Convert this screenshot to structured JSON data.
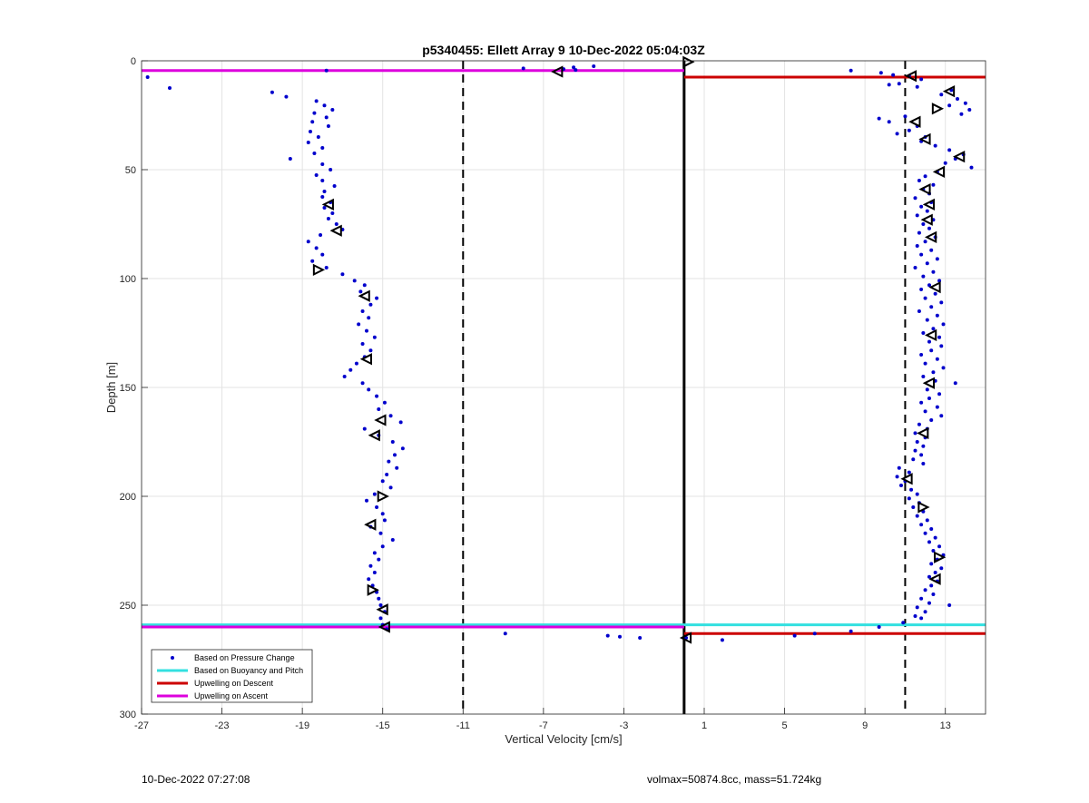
{
  "chart_data": {
    "type": "scatter",
    "title": "p5340455: Ellett Array 9 10-Dec-2022 05:04:03Z",
    "xlabel": "Vertical Velocity [cm/s]",
    "ylabel": "Depth [m]",
    "xlim": [
      -27,
      15
    ],
    "ylim": [
      0,
      300
    ],
    "y_reversed": true,
    "xticks": [
      -27,
      -23,
      -19,
      -15,
      -11,
      -7,
      -3,
      1,
      5,
      9,
      13
    ],
    "yticks": [
      0,
      50,
      100,
      150,
      200,
      250,
      300
    ],
    "grid": true,
    "legend_position": "bottom-left",
    "legend": [
      {
        "label": "Based on Pressure Change",
        "color": "#0000cc",
        "style": "dot"
      },
      {
        "label": "Based on Buoyancy and Pitch",
        "color": "#33e0e0",
        "style": "line"
      },
      {
        "label": "Upwelling on Descent",
        "color": "#cc0000",
        "style": "line"
      },
      {
        "label": "Upwelling on Ascent",
        "color": "#dd00dd",
        "style": "line"
      }
    ],
    "vertical_lines": [
      {
        "x": 0,
        "style": "solid",
        "color": "#000000"
      },
      {
        "x": -11,
        "style": "dashed",
        "color": "#000000"
      },
      {
        "x": 11,
        "style": "dashed",
        "color": "#000000"
      }
    ],
    "horizontal_lines": [
      {
        "series": "Upwelling on Ascent",
        "y": 4.5,
        "x_from": -27,
        "x_to": 0,
        "color": "#dd00dd"
      },
      {
        "series": "Upwelling on Descent",
        "y": 7.5,
        "x_from": 0,
        "x_to": 15,
        "color": "#cc0000"
      },
      {
        "series": "Based on Buoyancy and Pitch",
        "y": 259,
        "x_from": -27,
        "x_to": 15,
        "color": "#33e0e0"
      },
      {
        "series": "Upwelling on Ascent",
        "y": 260,
        "x_from": -27,
        "x_to": 0,
        "color": "#dd00dd"
      },
      {
        "series": "Upwelling on Descent",
        "y": 263,
        "x_from": 0,
        "x_to": 15,
        "color": "#cc0000"
      }
    ],
    "pressure_change_points": [
      [
        -26.7,
        7.5
      ],
      [
        -25.6,
        12.5
      ],
      [
        -20.5,
        14.5
      ],
      [
        -19.8,
        16.5
      ],
      [
        -17.8,
        4.5
      ],
      [
        -18.3,
        18.5
      ],
      [
        -17.9,
        20.5
      ],
      [
        -17.5,
        22.5
      ],
      [
        -18.4,
        24
      ],
      [
        -17.8,
        26
      ],
      [
        -18.5,
        28
      ],
      [
        -17.7,
        30
      ],
      [
        -18.6,
        32.5
      ],
      [
        -18.2,
        35
      ],
      [
        -18.7,
        37.5
      ],
      [
        -18.0,
        40
      ],
      [
        -18.4,
        42.5
      ],
      [
        -19.6,
        45
      ],
      [
        -18.0,
        47.5
      ],
      [
        -17.6,
        50
      ],
      [
        -18.3,
        52.5
      ],
      [
        -18.0,
        55
      ],
      [
        -17.4,
        57.5
      ],
      [
        -17.9,
        60
      ],
      [
        -18.0,
        62.5
      ],
      [
        -17.6,
        65
      ],
      [
        -17.9,
        67.5
      ],
      [
        -17.5,
        70
      ],
      [
        -17.7,
        72.5
      ],
      [
        -17.3,
        75
      ],
      [
        -17.0,
        77.5
      ],
      [
        -18.1,
        80
      ],
      [
        -18.7,
        83
      ],
      [
        -18.3,
        86
      ],
      [
        -18.0,
        89
      ],
      [
        -18.5,
        92
      ],
      [
        -17.8,
        95
      ],
      [
        -17.0,
        98
      ],
      [
        -16.4,
        101
      ],
      [
        -15.9,
        103
      ],
      [
        -16.1,
        106
      ],
      [
        -15.3,
        109
      ],
      [
        -15.6,
        112
      ],
      [
        -16.0,
        115
      ],
      [
        -15.7,
        118
      ],
      [
        -16.2,
        121
      ],
      [
        -15.8,
        124
      ],
      [
        -15.4,
        127
      ],
      [
        -16.0,
        130
      ],
      [
        -15.6,
        133
      ],
      [
        -15.9,
        136
      ],
      [
        -16.3,
        139
      ],
      [
        -16.6,
        142
      ],
      [
        -16.9,
        145
      ],
      [
        -16.0,
        148
      ],
      [
        -15.7,
        151
      ],
      [
        -15.3,
        154
      ],
      [
        -14.9,
        157
      ],
      [
        -15.2,
        160
      ],
      [
        -14.6,
        163
      ],
      [
        -14.1,
        166
      ],
      [
        -15.9,
        169
      ],
      [
        -15.2,
        172
      ],
      [
        -14.5,
        175
      ],
      [
        -14.0,
        178
      ],
      [
        -14.4,
        181
      ],
      [
        -14.7,
        184
      ],
      [
        -14.3,
        187
      ],
      [
        -14.8,
        190
      ],
      [
        -15.0,
        193
      ],
      [
        -14.6,
        196
      ],
      [
        -15.4,
        199
      ],
      [
        -15.8,
        202
      ],
      [
        -15.3,
        205
      ],
      [
        -15.0,
        208
      ],
      [
        -14.9,
        211
      ],
      [
        -15.6,
        214
      ],
      [
        -15.1,
        217
      ],
      [
        -14.5,
        220
      ],
      [
        -15.0,
        223
      ],
      [
        -15.4,
        226
      ],
      [
        -15.2,
        229
      ],
      [
        -15.6,
        232
      ],
      [
        -15.4,
        235
      ],
      [
        -15.7,
        238
      ],
      [
        -15.5,
        241
      ],
      [
        -15.3,
        244
      ],
      [
        -15.2,
        247
      ],
      [
        -15.1,
        250
      ],
      [
        -14.9,
        253
      ],
      [
        -15.1,
        256
      ],
      [
        -15.0,
        259
      ],
      [
        -14.8,
        261
      ],
      [
        -8.9,
        263
      ],
      [
        -3.8,
        264
      ],
      [
        -3.2,
        264.5
      ],
      [
        -2.2,
        265
      ],
      [
        0.1,
        265
      ],
      [
        1.9,
        266
      ],
      [
        5.5,
        264
      ],
      [
        6.5,
        263
      ],
      [
        8.3,
        262
      ],
      [
        9.7,
        260
      ],
      [
        10.9,
        258
      ],
      [
        11.8,
        256
      ],
      [
        13.2,
        250
      ],
      [
        -8.0,
        3.5
      ],
      [
        -6.0,
        3.8
      ],
      [
        -5.5,
        3.0
      ],
      [
        -5.4,
        4.2
      ],
      [
        -4.5,
        2.5
      ],
      [
        8.3,
        4.5
      ],
      [
        9.8,
        5.5
      ],
      [
        10.4,
        6.5
      ],
      [
        11.2,
        7
      ],
      [
        11.8,
        8.5
      ],
      [
        10.7,
        10.5
      ],
      [
        10.2,
        11
      ],
      [
        11.6,
        12
      ],
      [
        13.3,
        13.5
      ],
      [
        12.8,
        15.5
      ],
      [
        13.6,
        17.5
      ],
      [
        14.0,
        19.5
      ],
      [
        13.2,
        20.5
      ],
      [
        14.2,
        22.5
      ],
      [
        13.8,
        24.5
      ],
      [
        11.0,
        25.5
      ],
      [
        9.7,
        26.5
      ],
      [
        10.2,
        28
      ],
      [
        11.6,
        30
      ],
      [
        11.2,
        32
      ],
      [
        10.6,
        33.5
      ],
      [
        12.0,
        35
      ],
      [
        11.8,
        37
      ],
      [
        12.5,
        39
      ],
      [
        13.2,
        41
      ],
      [
        13.9,
        43
      ],
      [
        13.5,
        45
      ],
      [
        13.0,
        47
      ],
      [
        14.3,
        49
      ],
      [
        12.6,
        51
      ],
      [
        12.0,
        53
      ],
      [
        11.7,
        55
      ],
      [
        12.4,
        57
      ],
      [
        11.9,
        59
      ],
      [
        12.2,
        61
      ],
      [
        11.5,
        63
      ],
      [
        12.3,
        65
      ],
      [
        11.8,
        67
      ],
      [
        12.1,
        69
      ],
      [
        11.6,
        71
      ],
      [
        12.4,
        73
      ],
      [
        11.9,
        75
      ],
      [
        12.2,
        77
      ],
      [
        11.7,
        79
      ],
      [
        12.5,
        81
      ],
      [
        12.0,
        83
      ],
      [
        11.6,
        85
      ],
      [
        12.3,
        87
      ],
      [
        11.8,
        89
      ],
      [
        12.6,
        91
      ],
      [
        12.1,
        93
      ],
      [
        11.5,
        95
      ],
      [
        12.4,
        97
      ],
      [
        11.9,
        99
      ],
      [
        12.7,
        101
      ],
      [
        12.2,
        103
      ],
      [
        11.8,
        105
      ],
      [
        12.5,
        107
      ],
      [
        12.0,
        109
      ],
      [
        12.8,
        111
      ],
      [
        12.3,
        113
      ],
      [
        11.7,
        115
      ],
      [
        12.6,
        117
      ],
      [
        12.1,
        119
      ],
      [
        12.9,
        121
      ],
      [
        12.4,
        123
      ],
      [
        11.9,
        125
      ],
      [
        12.7,
        127
      ],
      [
        12.2,
        129
      ],
      [
        12.8,
        131
      ],
      [
        12.3,
        133
      ],
      [
        11.8,
        135
      ],
      [
        12.6,
        137
      ],
      [
        12.0,
        139
      ],
      [
        12.9,
        141
      ],
      [
        12.4,
        143
      ],
      [
        11.9,
        145
      ],
      [
        12.5,
        147
      ],
      [
        13.5,
        148
      ],
      [
        12.1,
        151
      ],
      [
        12.7,
        153
      ],
      [
        12.2,
        155
      ],
      [
        11.8,
        157
      ],
      [
        12.6,
        159
      ],
      [
        12.0,
        161
      ],
      [
        12.8,
        163
      ],
      [
        12.3,
        165
      ],
      [
        11.7,
        167
      ],
      [
        12.1,
        169
      ],
      [
        11.5,
        171
      ],
      [
        12.0,
        173
      ],
      [
        11.6,
        175
      ],
      [
        11.9,
        177
      ],
      [
        11.5,
        179
      ],
      [
        11.8,
        181
      ],
      [
        11.4,
        183
      ],
      [
        11.9,
        185
      ],
      [
        10.7,
        187
      ],
      [
        11.2,
        189
      ],
      [
        10.6,
        191
      ],
      [
        11.0,
        193
      ],
      [
        10.8,
        195
      ],
      [
        11.3,
        197
      ],
      [
        11.6,
        199
      ],
      [
        11.2,
        201
      ],
      [
        11.7,
        203
      ],
      [
        11.4,
        205
      ],
      [
        11.9,
        207
      ],
      [
        11.6,
        209
      ],
      [
        12.1,
        211
      ],
      [
        11.8,
        213
      ],
      [
        12.3,
        215
      ],
      [
        12.0,
        217
      ],
      [
        12.5,
        219
      ],
      [
        12.2,
        221
      ],
      [
        12.7,
        223
      ],
      [
        12.4,
        225
      ],
      [
        12.9,
        227
      ],
      [
        12.6,
        229
      ],
      [
        12.3,
        231
      ],
      [
        12.8,
        233
      ],
      [
        12.5,
        235
      ],
      [
        12.2,
        237
      ],
      [
        12.6,
        239
      ],
      [
        12.3,
        241
      ],
      [
        12.0,
        243
      ],
      [
        12.4,
        245
      ],
      [
        11.8,
        247
      ],
      [
        12.2,
        249
      ],
      [
        11.6,
        251
      ],
      [
        12.0,
        253
      ],
      [
        11.5,
        255
      ]
    ],
    "triangle_markers": [
      {
        "x": -6.3,
        "y": 5,
        "dir": "left"
      },
      {
        "x": 0.2,
        "y": 0.5,
        "dir": "right"
      },
      {
        "x": -17.7,
        "y": 66,
        "dir": "left"
      },
      {
        "x": -17.3,
        "y": 78,
        "dir": "left"
      },
      {
        "x": -18.2,
        "y": 96,
        "dir": "right"
      },
      {
        "x": -15.9,
        "y": 108,
        "dir": "left"
      },
      {
        "x": -15.8,
        "y": 137,
        "dir": "left"
      },
      {
        "x": -15.1,
        "y": 165,
        "dir": "left"
      },
      {
        "x": -15.4,
        "y": 172,
        "dir": "left"
      },
      {
        "x": -15.0,
        "y": 200,
        "dir": "right"
      },
      {
        "x": -15.6,
        "y": 213,
        "dir": "left"
      },
      {
        "x": -15.5,
        "y": 243,
        "dir": "right"
      },
      {
        "x": -15.0,
        "y": 252,
        "dir": "left"
      },
      {
        "x": -14.9,
        "y": 260,
        "dir": "left"
      },
      {
        "x": 0.1,
        "y": 265,
        "dir": "left"
      },
      {
        "x": 11.3,
        "y": 7,
        "dir": "left"
      },
      {
        "x": 13.2,
        "y": 14,
        "dir": "left"
      },
      {
        "x": 12.6,
        "y": 22,
        "dir": "right"
      },
      {
        "x": 11.5,
        "y": 28,
        "dir": "left"
      },
      {
        "x": 12.0,
        "y": 36,
        "dir": "left"
      },
      {
        "x": 13.7,
        "y": 44,
        "dir": "left"
      },
      {
        "x": 12.7,
        "y": 51,
        "dir": "left"
      },
      {
        "x": 12.0,
        "y": 59,
        "dir": "left"
      },
      {
        "x": 12.2,
        "y": 66,
        "dir": "left"
      },
      {
        "x": 12.1,
        "y": 73,
        "dir": "left"
      },
      {
        "x": 12.3,
        "y": 81,
        "dir": "left"
      },
      {
        "x": 12.5,
        "y": 104,
        "dir": "left"
      },
      {
        "x": 12.3,
        "y": 126,
        "dir": "left"
      },
      {
        "x": 12.2,
        "y": 148,
        "dir": "left"
      },
      {
        "x": 11.9,
        "y": 171,
        "dir": "left"
      },
      {
        "x": 11.1,
        "y": 192,
        "dir": "left"
      },
      {
        "x": 11.9,
        "y": 205,
        "dir": "right"
      },
      {
        "x": 12.7,
        "y": 228,
        "dir": "right"
      },
      {
        "x": 12.5,
        "y": 238,
        "dir": "left"
      }
    ]
  },
  "footer": {
    "left_text": "10-Dec-2022 07:27:08",
    "right_text": "volmax=50874.8cc, mass=51.724kg"
  }
}
